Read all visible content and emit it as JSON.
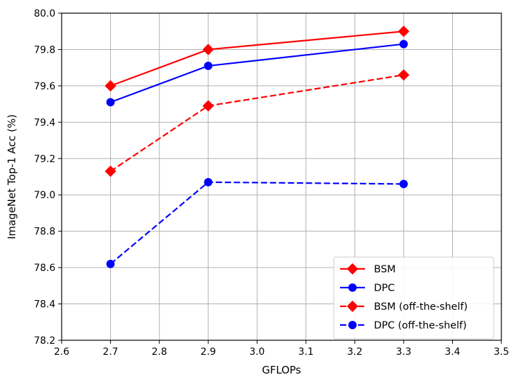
{
  "chart_data": {
    "type": "line",
    "title": "",
    "xlabel": "GFLOPs",
    "ylabel": "ImageNet Top-1 Acc (%)",
    "xlim": [
      2.6,
      3.5
    ],
    "ylim": [
      78.2,
      80.0
    ],
    "xticks": [
      2.6,
      2.7,
      2.8,
      2.9,
      3.0,
      3.1,
      3.2,
      3.3,
      3.4,
      3.5
    ],
    "yticks": [
      78.2,
      78.4,
      78.6,
      78.8,
      79.0,
      79.2,
      79.4,
      79.6,
      79.8,
      80.0
    ],
    "xtick_labels": [
      "2.6",
      "2.7",
      "2.8",
      "2.9",
      "3.0",
      "3.1",
      "3.2",
      "3.3",
      "3.4",
      "3.5"
    ],
    "ytick_labels": [
      "78.2",
      "78.4",
      "78.6",
      "78.8",
      "79.0",
      "79.2",
      "79.4",
      "79.6",
      "79.8",
      "80.0"
    ],
    "grid": true,
    "legend_position": "lower-right",
    "series": [
      {
        "name": "BSM",
        "x": [
          2.7,
          2.9,
          3.3
        ],
        "y": [
          79.6,
          79.8,
          79.9
        ],
        "color": "#ff0000",
        "linestyle": "solid",
        "marker": "diamond"
      },
      {
        "name": "DPC",
        "x": [
          2.7,
          2.9,
          3.3
        ],
        "y": [
          79.51,
          79.71,
          79.83
        ],
        "color": "#0000ff",
        "linestyle": "solid",
        "marker": "circle"
      },
      {
        "name": "BSM (off-the-shelf)",
        "x": [
          2.7,
          2.9,
          3.3
        ],
        "y": [
          79.13,
          79.49,
          79.66
        ],
        "color": "#ff0000",
        "linestyle": "dashed",
        "marker": "diamond"
      },
      {
        "name": "DPC (off-the-shelf)",
        "x": [
          2.7,
          2.9,
          3.3
        ],
        "y": [
          78.62,
          79.07,
          79.06
        ],
        "color": "#0000ff",
        "linestyle": "dashed",
        "marker": "circle"
      }
    ]
  }
}
